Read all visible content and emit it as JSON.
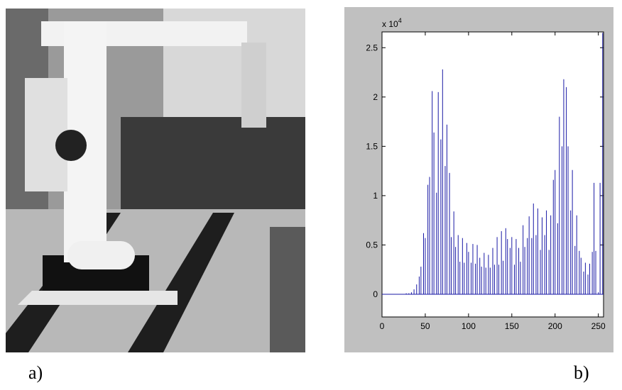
{
  "figure": {
    "label_a": "a)",
    "label_b": "b)"
  },
  "chart_data": {
    "type": "stem",
    "color": "#1a1aa6",
    "y_scale_label": "x 10",
    "y_scale_exponent": "4",
    "xlim": [
      0,
      256
    ],
    "ylim": [
      -0.23,
      2.66
    ],
    "xticks": [
      0,
      50,
      100,
      150,
      200,
      250
    ],
    "yticks": [
      0,
      0.5,
      1,
      1.5,
      2,
      2.5
    ],
    "x": [
      28,
      31,
      34,
      37,
      40,
      43,
      45,
      48,
      50,
      53,
      55,
      58,
      60,
      63,
      65,
      68,
      70,
      73,
      75,
      78,
      80,
      83,
      85,
      88,
      90,
      93,
      95,
      98,
      100,
      103,
      105,
      108,
      110,
      113,
      115,
      118,
      120,
      123,
      125,
      128,
      130,
      133,
      135,
      138,
      140,
      143,
      145,
      148,
      150,
      153,
      155,
      158,
      160,
      163,
      165,
      168,
      170,
      173,
      175,
      178,
      180,
      183,
      185,
      188,
      190,
      193,
      195,
      198,
      200,
      203,
      205,
      208,
      210,
      213,
      215,
      218,
      220,
      223,
      225,
      228,
      230,
      233,
      235,
      238,
      240,
      243,
      245,
      247,
      250,
      252,
      255
    ],
    "values": [
      0.01,
      0.01,
      0.02,
      0.05,
      0.1,
      0.18,
      0.28,
      0.62,
      0.57,
      1.11,
      1.19,
      2.06,
      1.64,
      1.03,
      2.05,
      1.57,
      2.28,
      1.3,
      1.72,
      1.23,
      0.58,
      0.84,
      0.48,
      0.6,
      0.33,
      0.57,
      0.32,
      0.52,
      0.43,
      0.32,
      0.51,
      0.31,
      0.5,
      0.37,
      0.28,
      0.42,
      0.27,
      0.4,
      0.27,
      0.47,
      0.3,
      0.58,
      0.3,
      0.64,
      0.34,
      0.67,
      0.56,
      0.47,
      0.58,
      0.3,
      0.56,
      0.47,
      0.33,
      0.7,
      0.48,
      0.57,
      0.79,
      0.57,
      0.92,
      0.6,
      0.87,
      0.45,
      0.78,
      0.6,
      0.85,
      0.45,
      0.8,
      1.16,
      1.26,
      0.72,
      1.8,
      1.5,
      2.18,
      2.1,
      1.5,
      0.85,
      1.26,
      0.49,
      0.8,
      0.44,
      0.37,
      0.23,
      0.32,
      0.2,
      0.31,
      0.43,
      1.13,
      0.44,
      0.02,
      1.13,
      2.65
    ]
  }
}
